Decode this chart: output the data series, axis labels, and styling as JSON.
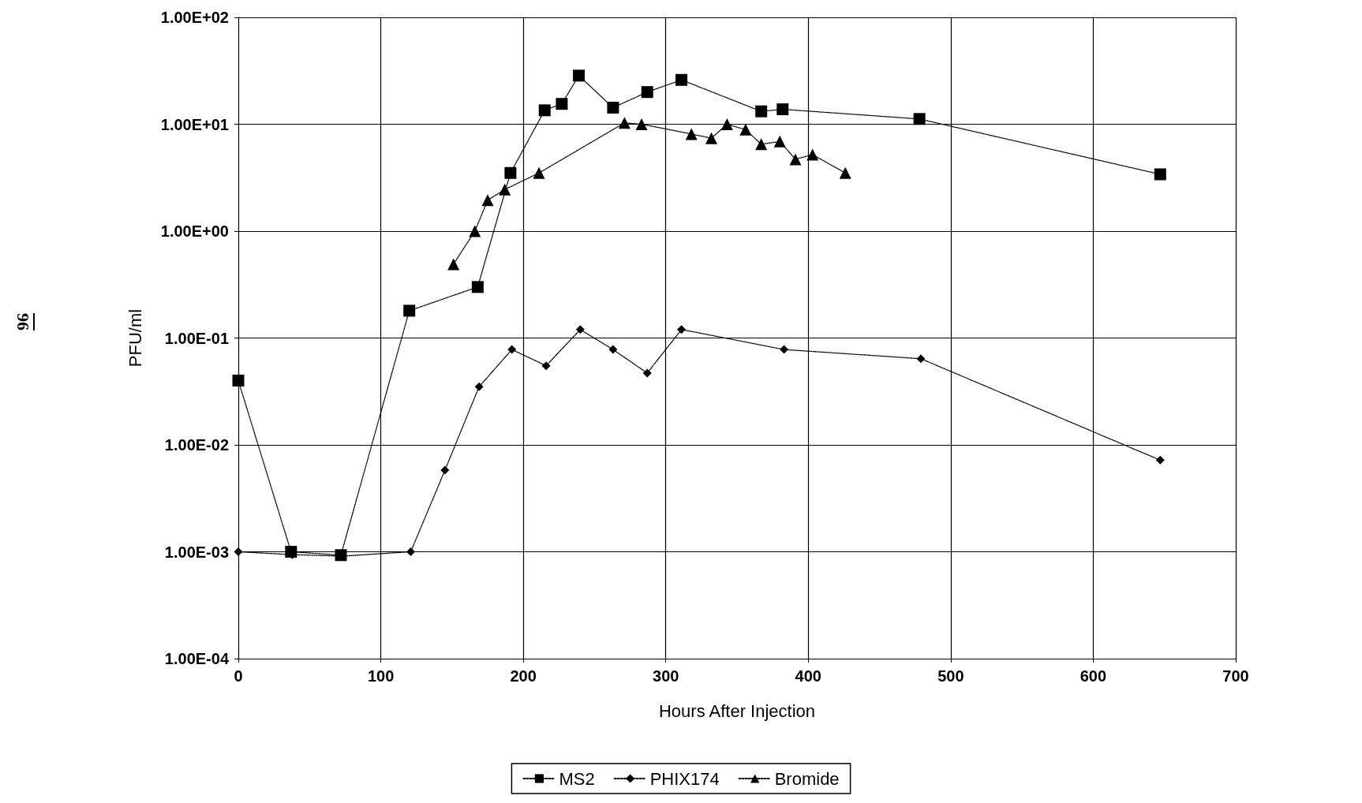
{
  "chart_data": {
    "type": "line",
    "xlabel": "Hours After Injection",
    "ylabel": "PFU/ml",
    "annotations": [
      "96"
    ],
    "log": "y",
    "grid": true,
    "legend": "bottom",
    "line_style": "dotted",
    "xlim": [
      0,
      700
    ],
    "xticks": [
      0,
      100,
      200,
      300,
      400,
      500,
      600,
      700
    ],
    "ylim": [
      0.0001,
      100
    ],
    "yticks": [
      {
        "value": 0.0001,
        "label": "1.00E-04"
      },
      {
        "value": 0.001,
        "label": "1.00E-03"
      },
      {
        "value": 0.01,
        "label": "1.00E-02"
      },
      {
        "value": 0.1,
        "label": "1.00E-01"
      },
      {
        "value": 1,
        "label": "1.00E+00"
      },
      {
        "value": 10,
        "label": "1.00E+01"
      },
      {
        "value": 100,
        "label": "1.00E+02"
      }
    ],
    "series": [
      {
        "name": "MS2",
        "color": "#000000",
        "marker": "square",
        "x": [
          0,
          37,
          72,
          120,
          168,
          191,
          215,
          227,
          239,
          263,
          287,
          311,
          367,
          382,
          478,
          647
        ],
        "values": [
          0.04,
          0.001,
          0.00093,
          0.18,
          0.3,
          3.5,
          13.5,
          15.5,
          28.5,
          14.3,
          20,
          26,
          13.2,
          13.8,
          11.2,
          3.4
        ]
      },
      {
        "name": "PHIX174",
        "color": "#000000",
        "marker": "diamond",
        "x": [
          0,
          38,
          73,
          121,
          145,
          169,
          192,
          216,
          240,
          263,
          287,
          311,
          383,
          479,
          647
        ],
        "values": [
          0.001,
          0.00094,
          0.00091,
          0.001,
          0.0058,
          0.035,
          0.078,
          0.055,
          0.12,
          0.078,
          0.047,
          0.12,
          0.078,
          0.064,
          0.0072
        ]
      },
      {
        "name": "Bromide",
        "color": "#000000",
        "marker": "triangle",
        "x": [
          151,
          166,
          175,
          187,
          211,
          271,
          283,
          318,
          332,
          343,
          356,
          367,
          380,
          391,
          403,
          426
        ],
        "values": [
          0.49,
          1.0,
          1.95,
          2.45,
          3.5,
          10.3,
          10,
          8.1,
          7.4,
          10,
          8.9,
          6.5,
          6.9,
          4.7,
          5.2,
          3.5
        ]
      }
    ]
  }
}
